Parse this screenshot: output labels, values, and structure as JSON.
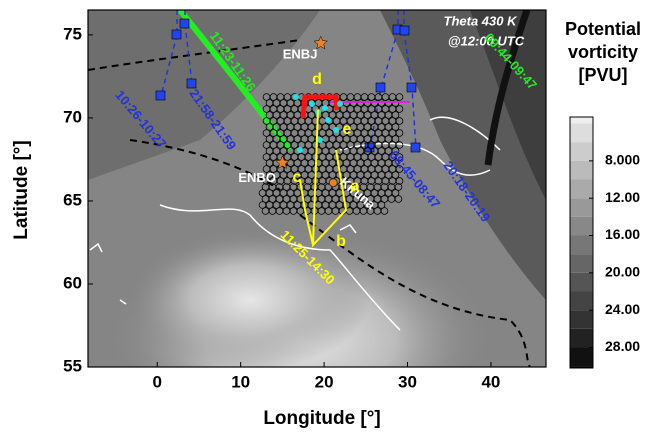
{
  "chart_data": {
    "type": "map",
    "title": "Theta 430 K",
    "subtitle": "@12:00 UTC",
    "x_label": "Longitude [°]",
    "y_label": "Latitude [°]",
    "xlim": [
      -8.3,
      46.6
    ],
    "ylim": [
      55,
      76.5
    ],
    "xticks": [
      0,
      10,
      20,
      30,
      40
    ],
    "yticks": [
      55,
      60,
      65,
      70,
      75
    ],
    "colorbar": {
      "label": [
        "Potential",
        "vorticity",
        "[PVU]"
      ],
      "clim": [
        3.3,
        30.2
      ],
      "ticks": [
        {
          "value": 8,
          "label": "8.000"
        },
        {
          "value": 12,
          "label": "12.00"
        },
        {
          "value": 16,
          "label": "16.00"
        },
        {
          "value": 20,
          "label": "20.00"
        },
        {
          "value": 24,
          "label": "24.00"
        },
        {
          "value": 28,
          "label": "28.00"
        }
      ]
    },
    "sites": [
      {
        "name": "ENBJ",
        "lon": 19.6,
        "lat": 74.5,
        "marker": "star",
        "color": "#f08020"
      },
      {
        "name": "ENBO",
        "lon": 15,
        "lat": 67.3,
        "marker": "star",
        "color": "#f08020"
      },
      {
        "name": "Kiruna",
        "lon": 21.1,
        "lat": 66.1,
        "marker": "circle",
        "color": "#f08020"
      }
    ],
    "annotations": [
      {
        "text": "11:23-11:26",
        "color": "#22ee22"
      },
      {
        "text": "09:44-09:47",
        "color": "#22ee22"
      },
      {
        "text": "10:26-10:27",
        "color": "#2233dd"
      },
      {
        "text": "21:58-21:59",
        "color": "#2233dd"
      },
      {
        "text": "08:45-08:47",
        "color": "#2233dd"
      },
      {
        "text": "20:18-20:19",
        "color": "#2233dd"
      },
      {
        "text": "11:25-14:30",
        "color": "#ffff00"
      },
      {
        "text": "a",
        "color": "#ffff00"
      },
      {
        "text": "b",
        "color": "#ffff00"
      },
      {
        "text": "c",
        "color": "#ffff00"
      },
      {
        "text": "d",
        "color": "#ffff00"
      },
      {
        "text": "e",
        "color": "#ffff00"
      }
    ]
  }
}
